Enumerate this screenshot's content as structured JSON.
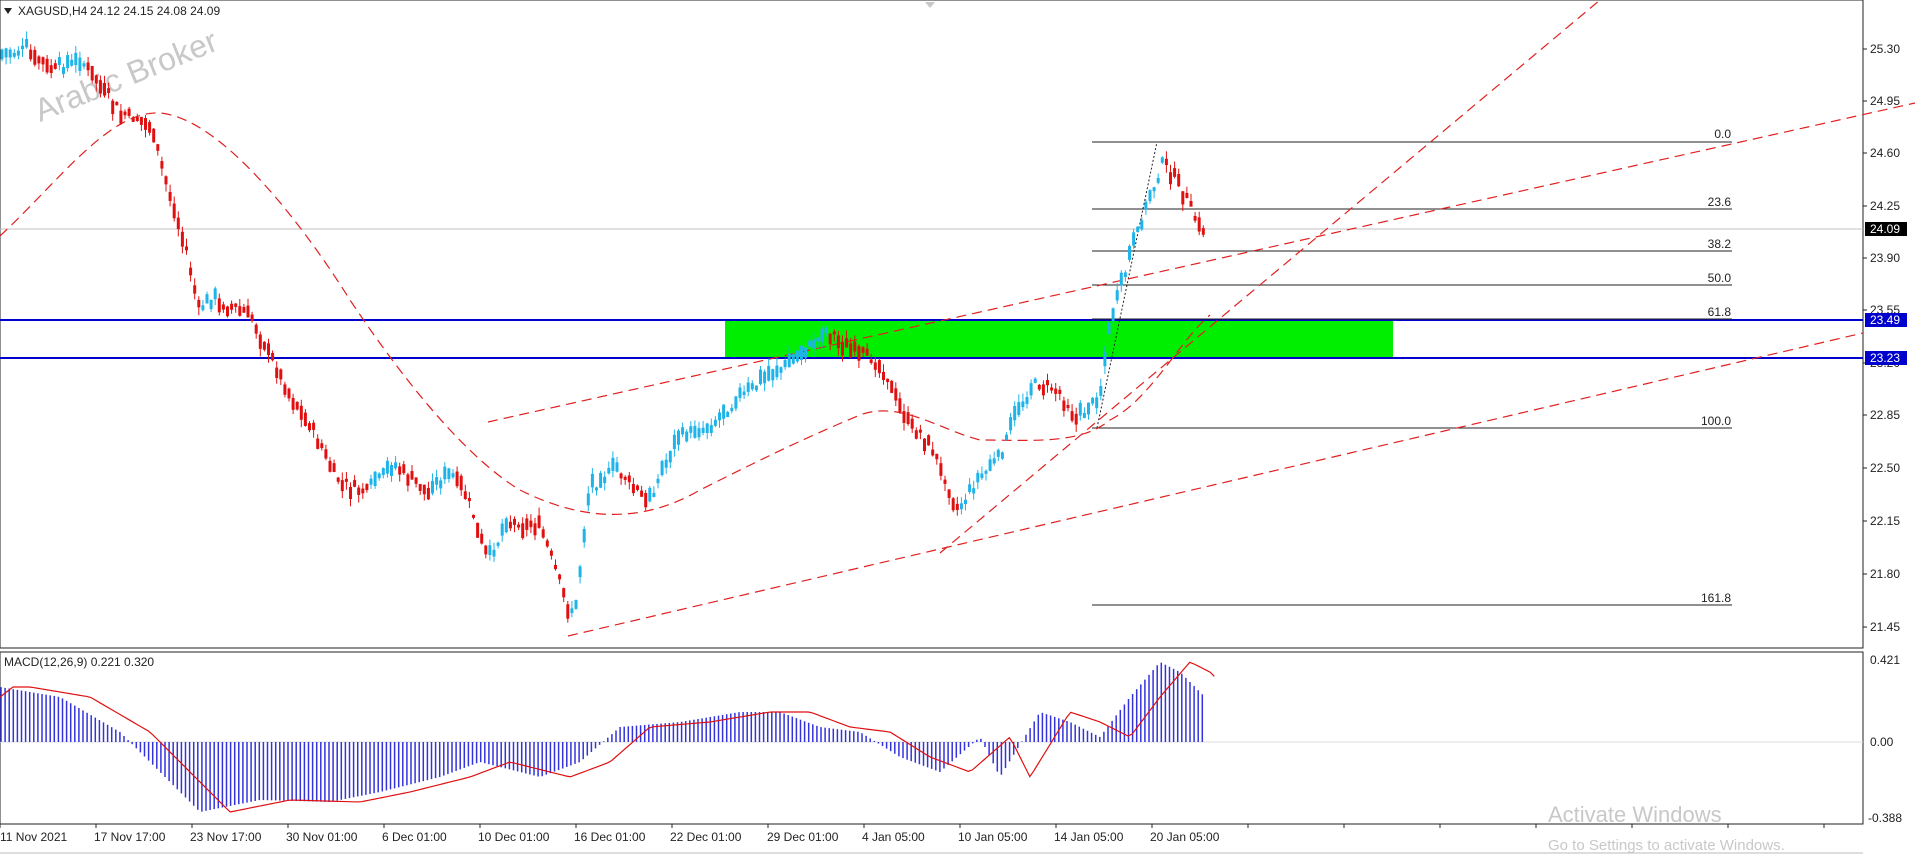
{
  "header": {
    "symbol": "XAGUSD,H4",
    "ohlc": "24.12 24.15 24.08 24.09"
  },
  "watermark": "Arabic Broker",
  "main_chart": {
    "y_axis_labels": [
      "25.30",
      "24.95",
      "24.60",
      "24.25",
      "23.90",
      "23.55",
      "23.20",
      "22.85",
      "22.50",
      "22.15",
      "21.80",
      "21.45"
    ],
    "current_price": "24.09",
    "level_upper": "23.49",
    "level_lower": "23.23",
    "fib_labels": [
      "0.0",
      "23.6",
      "38.2",
      "50.0",
      "61.8",
      "100.0",
      "161.8"
    ]
  },
  "macd": {
    "title": "MACD(12,26,9) 0.221 0.320",
    "axis_labels": [
      "0.421",
      "0.00",
      "-0.388"
    ]
  },
  "x_axis_labels": [
    "11 Nov 2021",
    "17 Nov 17:00",
    "23 Nov 17:00",
    "30 Nov 01:00",
    "6 Dec 01:00",
    "10 Dec 01:00",
    "16 Dec 01:00",
    "22 Dec 01:00",
    "29 Dec 01:00",
    "4 Jan 05:00",
    "10 Jan 05:00",
    "14 Jan 05:00",
    "20 Jan 05:00"
  ],
  "activation": {
    "title": "Activate Windows",
    "subtitle": "Go to Settings to activate Windows."
  },
  "colors": {
    "bull": "#1eb4ea",
    "bear": "#e01010",
    "level_line": "#0000cc",
    "zone": "#00ee00",
    "trend": "#e02020",
    "macd_bar": "#3333dd",
    "macd_signal": "#e01010"
  }
}
